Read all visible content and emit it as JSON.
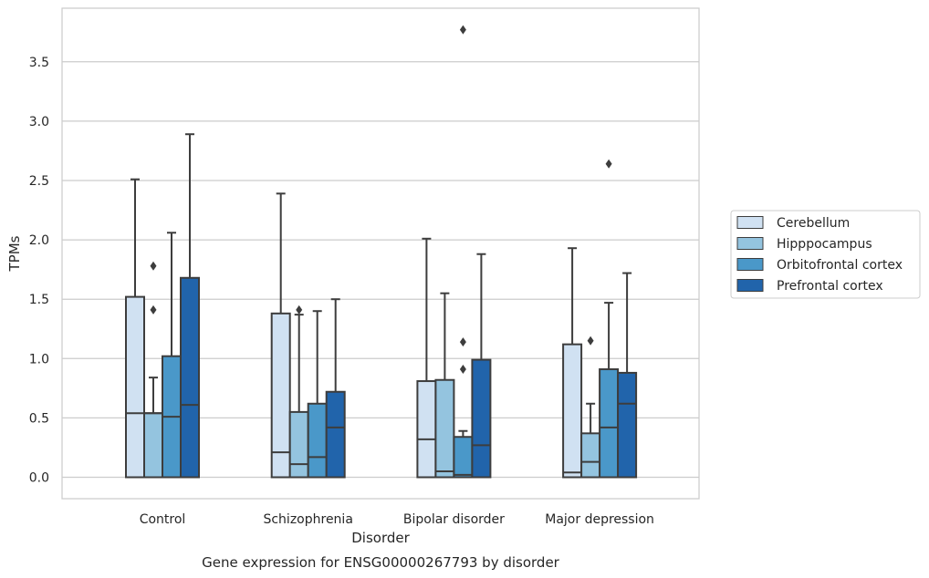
{
  "chart_data": {
    "type": "box",
    "title": "",
    "caption": "Gene expression for ENSG00000267793 by disorder",
    "xlabel": "Disorder",
    "ylabel": "TPMs",
    "ylim": [
      -0.18,
      3.98
    ],
    "yticks": [
      "0.0",
      "0.5",
      "1.0",
      "1.5",
      "2.0",
      "2.5",
      "3.0",
      "3.5"
    ],
    "grid": "horizontal",
    "legend_position": "right",
    "categories": [
      "Control",
      "Schizophrenia",
      "Bipolar disorder",
      "Major depression"
    ],
    "series": [
      {
        "name": "Cerebellum",
        "color": "#d0e1f2",
        "boxes": [
          {
            "q1": 0.0,
            "median": 0.54,
            "q3": 1.52,
            "whisker_low": 0.0,
            "whisker_high": 2.51,
            "outliers": []
          },
          {
            "q1": 0.0,
            "median": 0.21,
            "q3": 1.38,
            "whisker_low": 0.0,
            "whisker_high": 2.39,
            "outliers": []
          },
          {
            "q1": 0.0,
            "median": 0.32,
            "q3": 0.81,
            "whisker_low": 0.0,
            "whisker_high": 2.01,
            "outliers": []
          },
          {
            "q1": 0.0,
            "median": 0.04,
            "q3": 1.12,
            "whisker_low": 0.0,
            "whisker_high": 1.93,
            "outliers": []
          }
        ]
      },
      {
        "name": "Hipppocampus",
        "color": "#94c4df",
        "boxes": [
          {
            "q1": 0.0,
            "median": 0.54,
            "q3": 0.54,
            "whisker_low": 0.0,
            "whisker_high": 0.84,
            "outliers": [
              1.41,
              1.78
            ]
          },
          {
            "q1": 0.0,
            "median": 0.11,
            "q3": 0.55,
            "whisker_low": 0.0,
            "whisker_high": 1.37,
            "outliers": [
              1.41
            ]
          },
          {
            "q1": 0.0,
            "median": 0.05,
            "q3": 0.82,
            "whisker_low": 0.0,
            "whisker_high": 1.55,
            "outliers": []
          },
          {
            "q1": 0.0,
            "median": 0.13,
            "q3": 0.37,
            "whisker_low": 0.0,
            "whisker_high": 0.62,
            "outliers": [
              1.15
            ]
          }
        ]
      },
      {
        "name": "Orbitofrontal cortex",
        "color": "#4a98c9",
        "boxes": [
          {
            "q1": 0.0,
            "median": 0.51,
            "q3": 1.02,
            "whisker_low": 0.0,
            "whisker_high": 2.06,
            "outliers": []
          },
          {
            "q1": 0.0,
            "median": 0.17,
            "q3": 0.62,
            "whisker_low": 0.0,
            "whisker_high": 1.4,
            "outliers": []
          },
          {
            "q1": 0.0,
            "median": 0.02,
            "q3": 0.34,
            "whisker_low": 0.0,
            "whisker_high": 0.39,
            "outliers": [
              0.91,
              1.14,
              3.77
            ]
          },
          {
            "q1": 0.0,
            "median": 0.42,
            "q3": 0.91,
            "whisker_low": 0.0,
            "whisker_high": 1.47,
            "outliers": [
              2.64
            ]
          }
        ]
      },
      {
        "name": "Prefrontal cortex",
        "color": "#2164ab",
        "boxes": [
          {
            "q1": 0.0,
            "median": 0.61,
            "q3": 1.68,
            "whisker_low": 0.0,
            "whisker_high": 2.89,
            "outliers": []
          },
          {
            "q1": 0.0,
            "median": 0.42,
            "q3": 0.72,
            "whisker_low": 0.0,
            "whisker_high": 1.5,
            "outliers": []
          },
          {
            "q1": 0.0,
            "median": 0.27,
            "q3": 0.99,
            "whisker_low": 0.0,
            "whisker_high": 1.88,
            "outliers": []
          },
          {
            "q1": 0.0,
            "median": 0.62,
            "q3": 0.88,
            "whisker_low": 0.0,
            "whisker_high": 1.72,
            "outliers": []
          }
        ]
      }
    ]
  }
}
